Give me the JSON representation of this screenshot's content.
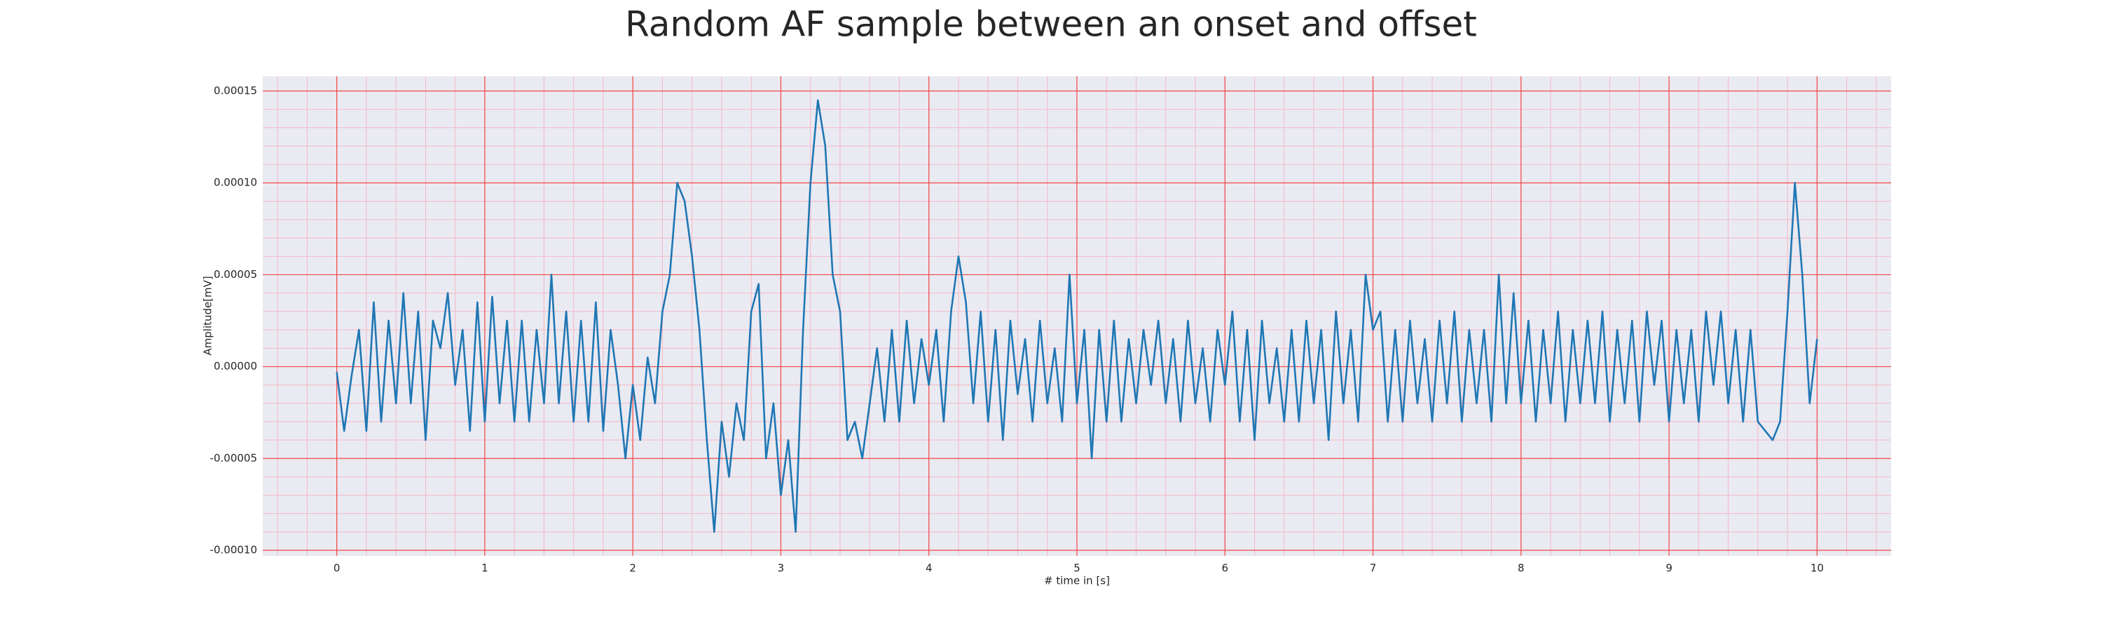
{
  "chart_data": {
    "type": "line",
    "title": "Random AF sample between an onset and offset",
    "xlabel": "# time in [s]",
    "ylabel": "Amplitude[mV]",
    "color": "#1f77b4",
    "grid": true,
    "minor_grid": true,
    "xlim": [
      -0.5,
      10.5
    ],
    "ylim": [
      -0.000103,
      0.000158
    ],
    "xticks": [
      0,
      1,
      2,
      3,
      4,
      5,
      6,
      7,
      8,
      9,
      10
    ],
    "yticks": [
      {
        "value": -0.0001,
        "label": "-0.00010"
      },
      {
        "value": -5e-05,
        "label": "-0.00005"
      },
      {
        "value": 0,
        "label": "0.00000"
      },
      {
        "value": 5e-05,
        "label": "0.00005"
      },
      {
        "value": 0.0001,
        "label": "0.00010"
      },
      {
        "value": 0.00015,
        "label": "0.00015"
      }
    ],
    "x": [
      0,
      0.05,
      0.1,
      0.15,
      0.2,
      0.25,
      0.3,
      0.35,
      0.4,
      0.45,
      0.5,
      0.55,
      0.6,
      0.65,
      0.7,
      0.75,
      0.8,
      0.85,
      0.9,
      0.95,
      1,
      1.05,
      1.1,
      1.15,
      1.2,
      1.25,
      1.3,
      1.35,
      1.4,
      1.45,
      1.5,
      1.55,
      1.6,
      1.65,
      1.7,
      1.75,
      1.8,
      1.85,
      1.9,
      1.95,
      2,
      2.05,
      2.1,
      2.15,
      2.2,
      2.25,
      2.3,
      2.35,
      2.4,
      2.45,
      2.5,
      2.55,
      2.6,
      2.65,
      2.7,
      2.75,
      2.8,
      2.85,
      2.9,
      2.95,
      3,
      3.05,
      3.1,
      3.15,
      3.2,
      3.25,
      3.3,
      3.35,
      3.4,
      3.45,
      3.5,
      3.55,
      3.6,
      3.65,
      3.7,
      3.75,
      3.8,
      3.85,
      3.9,
      3.95,
      4,
      4.05,
      4.1,
      4.15,
      4.2,
      4.25,
      4.3,
      4.35,
      4.4,
      4.45,
      4.5,
      4.55,
      4.6,
      4.65,
      4.7,
      4.75,
      4.8,
      4.85,
      4.9,
      4.95,
      5,
      5.05,
      5.1,
      5.15,
      5.2,
      5.25,
      5.3,
      5.35,
      5.4,
      5.45,
      5.5,
      5.55,
      5.6,
      5.65,
      5.7,
      5.75,
      5.8,
      5.85,
      5.9,
      5.95,
      6,
      6.05,
      6.1,
      6.15,
      6.2,
      6.25,
      6.3,
      6.35,
      6.4,
      6.45,
      6.5,
      6.55,
      6.6,
      6.65,
      6.7,
      6.75,
      6.8,
      6.85,
      6.9,
      6.95,
      7,
      7.05,
      7.1,
      7.15,
      7.2,
      7.25,
      7.3,
      7.35,
      7.4,
      7.45,
      7.5,
      7.55,
      7.6,
      7.65,
      7.7,
      7.75,
      7.8,
      7.85,
      7.9,
      7.95,
      8,
      8.05,
      8.1,
      8.15,
      8.2,
      8.25,
      8.3,
      8.35,
      8.4,
      8.45,
      8.5,
      8.55,
      8.6,
      8.65,
      8.7,
      8.75,
      8.8,
      8.85,
      8.9,
      8.95,
      9,
      9.05,
      9.1,
      9.15,
      9.2,
      9.25,
      9.3,
      9.35,
      9.4,
      9.45,
      9.5,
      9.55,
      9.6,
      9.65,
      9.7,
      9.75,
      9.8,
      9.85,
      9.9,
      9.95,
      10
    ],
    "values": [
      -3e-06,
      -3.5e-05,
      -5e-06,
      2e-05,
      -3.5e-05,
      3.5e-05,
      -3e-05,
      2.5e-05,
      -2e-05,
      4e-05,
      -2e-05,
      3e-05,
      -4e-05,
      2.5e-05,
      1e-05,
      4e-05,
      -1e-05,
      2e-05,
      -3.5e-05,
      3.5e-05,
      -3e-05,
      3.8e-05,
      -2e-05,
      2.5e-05,
      -3e-05,
      2.5e-05,
      -3e-05,
      2e-05,
      -2e-05,
      5e-05,
      -2e-05,
      3e-05,
      -3e-05,
      2.5e-05,
      -3e-05,
      3.5e-05,
      -3.5e-05,
      2e-05,
      -1e-05,
      -5e-05,
      -1e-05,
      -4e-05,
      5e-06,
      -2e-05,
      3e-05,
      5e-05,
      0.0001,
      9e-05,
      6e-05,
      2e-05,
      -4e-05,
      -9e-05,
      -3e-05,
      -6e-05,
      -2e-05,
      -4e-05,
      3e-05,
      4.5e-05,
      -5e-05,
      -2e-05,
      -7e-05,
      -4e-05,
      -9e-05,
      2e-05,
      0.0001,
      0.000145,
      0.00012,
      5e-05,
      3e-05,
      -4e-05,
      -3e-05,
      -5e-05,
      -2e-05,
      1e-05,
      -3e-05,
      2e-05,
      -3e-05,
      2.5e-05,
      -2e-05,
      1.5e-05,
      -1e-05,
      2e-05,
      -3e-05,
      3e-05,
      6e-05,
      3.5e-05,
      -2e-05,
      3e-05,
      -3e-05,
      2e-05,
      -4e-05,
      2.5e-05,
      -1.5e-05,
      1.5e-05,
      -3e-05,
      2.5e-05,
      -2e-05,
      1e-05,
      -3e-05,
      5e-05,
      -2e-05,
      2e-05,
      -5e-05,
      2e-05,
      -3e-05,
      2.5e-05,
      -3e-05,
      1.5e-05,
      -2e-05,
      2e-05,
      -1e-05,
      2.5e-05,
      -2e-05,
      1.5e-05,
      -3e-05,
      2.5e-05,
      -2e-05,
      1e-05,
      -3e-05,
      2e-05,
      -1e-05,
      3e-05,
      -3e-05,
      2e-05,
      -4e-05,
      2.5e-05,
      -2e-05,
      1e-05,
      -3e-05,
      2e-05,
      -3e-05,
      2.5e-05,
      -2e-05,
      2e-05,
      -4e-05,
      3e-05,
      -2e-05,
      2e-05,
      -3e-05,
      5e-05,
      2e-05,
      3e-05,
      -3e-05,
      2e-05,
      -3e-05,
      2.5e-05,
      -2e-05,
      1.5e-05,
      -3e-05,
      2.5e-05,
      -2e-05,
      3e-05,
      -3e-05,
      2e-05,
      -2e-05,
      2e-05,
      -3e-05,
      5e-05,
      -2e-05,
      4e-05,
      -2e-05,
      2.5e-05,
      -3e-05,
      2e-05,
      -2e-05,
      3e-05,
      -3e-05,
      2e-05,
      -2e-05,
      2.5e-05,
      -2e-05,
      3e-05,
      -3e-05,
      2e-05,
      -2e-05,
      2.5e-05,
      -3e-05,
      3e-05,
      -1e-05,
      2.5e-05,
      -3e-05,
      2e-05,
      -2e-05,
      2e-05,
      -3e-05,
      3e-05,
      -1e-05,
      3e-05,
      -2e-05,
      2e-05,
      -3e-05,
      2e-05,
      -3e-05,
      -3.5e-05,
      -4e-05,
      -3e-05,
      3e-05,
      0.0001,
      5e-05,
      -2e-05,
      1.5e-05
    ]
  }
}
